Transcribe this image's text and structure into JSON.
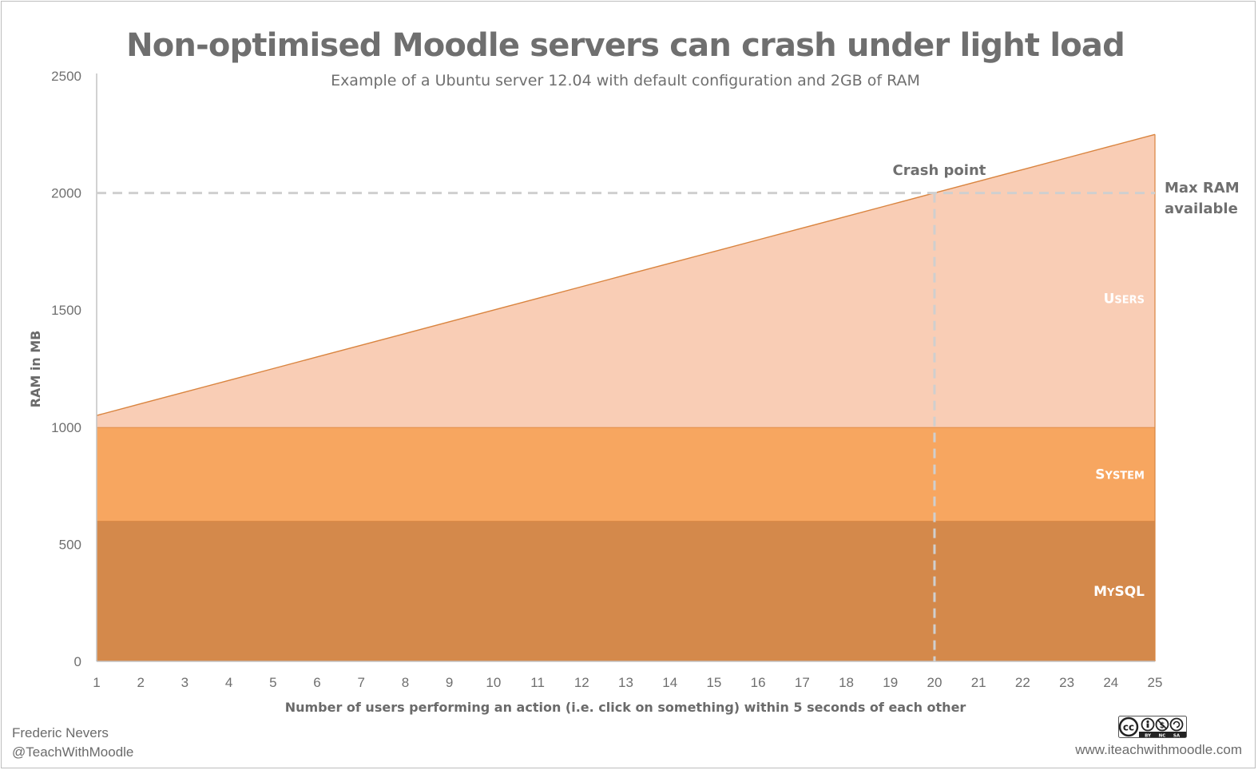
{
  "chart_data": {
    "type": "area",
    "title": "Non-optimised Moodle servers can crash under light load",
    "subtitle": "Example of a Ubuntu server 12.04 with default configuration and 2GB of RAM",
    "xlabel": "Number of users performing an action (i.e. click on something) within 5 seconds of each other",
    "ylabel": "RAM in MB",
    "x": [
      1,
      2,
      3,
      4,
      5,
      6,
      7,
      8,
      9,
      10,
      11,
      12,
      13,
      14,
      15,
      16,
      17,
      18,
      19,
      20,
      21,
      22,
      23,
      24,
      25
    ],
    "ylim": [
      0,
      2500
    ],
    "yticks": [
      0,
      500,
      1000,
      1500,
      2000,
      2500
    ],
    "stacked": true,
    "series": [
      {
        "name": "MySQL",
        "label_main": "M",
        "label_small": "Y",
        "label_rest": "SQL",
        "values": [
          600,
          600,
          600,
          600,
          600,
          600,
          600,
          600,
          600,
          600,
          600,
          600,
          600,
          600,
          600,
          600,
          600,
          600,
          600,
          600,
          600,
          600,
          600,
          600,
          600
        ],
        "color": "#d4894b"
      },
      {
        "name": "System",
        "label_main": "S",
        "label_small": "YSTEM",
        "label_rest": "",
        "values": [
          400,
          400,
          400,
          400,
          400,
          400,
          400,
          400,
          400,
          400,
          400,
          400,
          400,
          400,
          400,
          400,
          400,
          400,
          400,
          400,
          400,
          400,
          400,
          400,
          400
        ],
        "color": "#f7a660"
      },
      {
        "name": "Users",
        "label_main": "U",
        "label_small": "SERS",
        "label_rest": "",
        "values": [
          50,
          100,
          150,
          200,
          250,
          300,
          350,
          400,
          450,
          500,
          550,
          600,
          650,
          700,
          750,
          800,
          850,
          900,
          950,
          1000,
          1050,
          1100,
          1150,
          1200,
          1250
        ],
        "color": "#f9cdb5"
      }
    ],
    "annotations": {
      "max_ram_value": 2000,
      "max_ram_label": [
        "Max RAM",
        "available"
      ],
      "crash_x": 20,
      "crash_label": "Crash point"
    },
    "colors": {
      "line": "#d9843f",
      "axis": "#c3c3c3",
      "dashed": "#cfcfcf"
    }
  },
  "footer": {
    "author": "Frederic Nevers",
    "handle": "@TeachWithMoodle",
    "website": "www.iteachwithmoodle.com",
    "license_badge": [
      "cc",
      "BY",
      "NC",
      "SA"
    ]
  }
}
